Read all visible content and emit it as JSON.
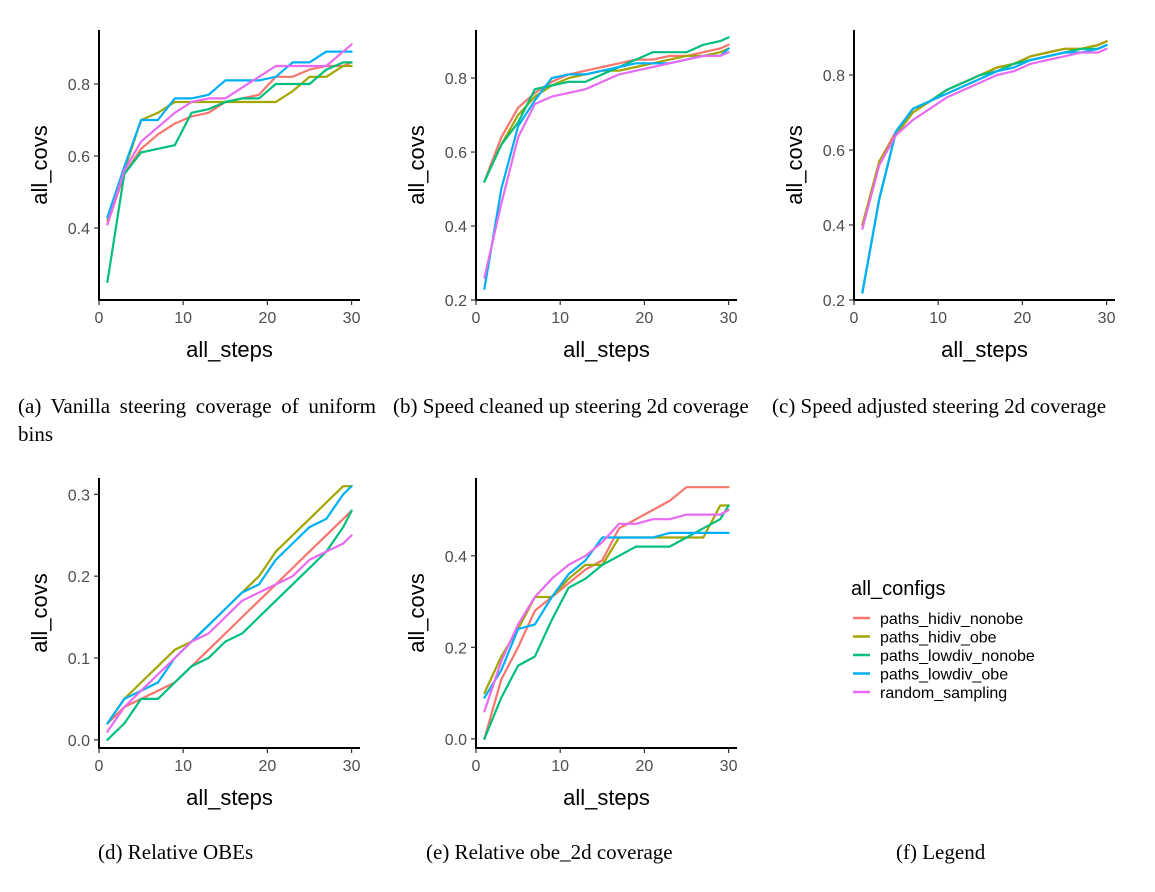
{
  "legend": {
    "title": "all_configs",
    "entries": [
      {
        "name": "paths_hidiv_nonobe",
        "color": "#F8766D"
      },
      {
        "name": "paths_hidiv_obe",
        "color": "#A3A500"
      },
      {
        "name": "paths_lowdiv_nonobe",
        "color": "#00BF7D"
      },
      {
        "name": "paths_lowdiv_obe",
        "color": "#00B0F6"
      },
      {
        "name": "random_sampling",
        "color": "#E76BF3"
      }
    ]
  },
  "captions": [
    "(a) Vanilla steering coverage of uniform bins",
    "(b) Speed cleaned up steering 2d coverage",
    "(c) Speed adjusted steering 2d coverage",
    "(d) Relative OBEs",
    "(e) Relative obe_2d coverage",
    "(f) Legend"
  ],
  "chart_data": [
    {
      "type": "line",
      "title": "",
      "xlabel": "all_steps",
      "ylabel": "all_covs",
      "xlim": [
        0,
        31
      ],
      "ylim": [
        0.2,
        0.95
      ],
      "xticks": [
        0,
        10,
        20,
        30
      ],
      "yticks": [
        0.4,
        0.6,
        0.8
      ],
      "yticklabels": [
        "0.4",
        "0.6",
        "0.8"
      ],
      "series": [
        {
          "x": [
            1,
            3,
            5,
            7,
            9,
            11,
            13,
            15,
            17,
            19,
            21,
            23,
            25,
            27,
            29,
            30
          ],
          "y": [
            0.41,
            0.55,
            0.62,
            0.66,
            0.69,
            0.71,
            0.72,
            0.75,
            0.76,
            0.77,
            0.82,
            0.82,
            0.84,
            0.85,
            0.85,
            0.86
          ]
        },
        {
          "x": [
            1,
            3,
            5,
            7,
            9,
            11,
            13,
            15,
            17,
            19,
            21,
            23,
            25,
            27,
            29,
            30
          ],
          "y": [
            0.42,
            0.56,
            0.7,
            0.72,
            0.75,
            0.75,
            0.75,
            0.75,
            0.75,
            0.75,
            0.75,
            0.78,
            0.82,
            0.82,
            0.85,
            0.85
          ]
        },
        {
          "x": [
            1,
            3,
            5,
            7,
            9,
            11,
            13,
            15,
            17,
            19,
            21,
            23,
            25,
            27,
            29,
            30
          ],
          "y": [
            0.25,
            0.55,
            0.61,
            0.62,
            0.63,
            0.72,
            0.73,
            0.75,
            0.76,
            0.76,
            0.8,
            0.8,
            0.8,
            0.84,
            0.86,
            0.86
          ]
        },
        {
          "x": [
            1,
            3,
            5,
            7,
            9,
            11,
            13,
            15,
            17,
            19,
            21,
            23,
            25,
            27,
            29,
            30
          ],
          "y": [
            0.43,
            0.57,
            0.7,
            0.7,
            0.76,
            0.76,
            0.77,
            0.81,
            0.81,
            0.81,
            0.82,
            0.86,
            0.86,
            0.89,
            0.89,
            0.89
          ]
        },
        {
          "x": [
            1,
            3,
            5,
            7,
            9,
            11,
            13,
            15,
            17,
            19,
            21,
            23,
            25,
            27,
            29,
            30
          ],
          "y": [
            0.41,
            0.56,
            0.64,
            0.68,
            0.72,
            0.75,
            0.76,
            0.76,
            0.79,
            0.82,
            0.85,
            0.85,
            0.85,
            0.85,
            0.89,
            0.91
          ]
        }
      ]
    },
    {
      "type": "line",
      "title": "",
      "xlabel": "all_steps",
      "ylabel": "all_covs",
      "xlim": [
        0,
        31
      ],
      "ylim": [
        0.2,
        0.93
      ],
      "xticks": [
        0,
        10,
        20,
        30
      ],
      "yticks": [
        0.2,
        0.4,
        0.6,
        0.8
      ],
      "yticklabels": [
        "0.2",
        "0.4",
        "0.6",
        "0.8"
      ],
      "series": [
        {
          "x": [
            1,
            3,
            5,
            7,
            9,
            11,
            13,
            15,
            17,
            19,
            21,
            23,
            25,
            27,
            29,
            30
          ],
          "y": [
            0.52,
            0.64,
            0.72,
            0.76,
            0.79,
            0.81,
            0.82,
            0.83,
            0.84,
            0.85,
            0.85,
            0.86,
            0.86,
            0.87,
            0.88,
            0.89
          ]
        },
        {
          "x": [
            1,
            3,
            5,
            7,
            9,
            11,
            13,
            15,
            17,
            19,
            21,
            23,
            25,
            27,
            29,
            30
          ],
          "y": [
            0.52,
            0.62,
            0.7,
            0.75,
            0.78,
            0.8,
            0.81,
            0.82,
            0.82,
            0.83,
            0.84,
            0.85,
            0.86,
            0.86,
            0.87,
            0.88
          ]
        },
        {
          "x": [
            1,
            3,
            5,
            7,
            9,
            11,
            13,
            15,
            17,
            19,
            21,
            23,
            25,
            27,
            29,
            30
          ],
          "y": [
            0.52,
            0.62,
            0.68,
            0.77,
            0.78,
            0.79,
            0.79,
            0.81,
            0.83,
            0.85,
            0.87,
            0.87,
            0.87,
            0.89,
            0.9,
            0.91
          ]
        },
        {
          "x": [
            1,
            3,
            5,
            7,
            9,
            11,
            13,
            15,
            17,
            19,
            21,
            23,
            25,
            27,
            29,
            30
          ],
          "y": [
            0.23,
            0.5,
            0.67,
            0.74,
            0.8,
            0.81,
            0.81,
            0.82,
            0.83,
            0.84,
            0.84,
            0.84,
            0.85,
            0.86,
            0.86,
            0.88
          ]
        },
        {
          "x": [
            1,
            3,
            5,
            7,
            9,
            11,
            13,
            15,
            17,
            19,
            21,
            23,
            25,
            27,
            29,
            30
          ],
          "y": [
            0.26,
            0.46,
            0.64,
            0.73,
            0.75,
            0.76,
            0.77,
            0.79,
            0.81,
            0.82,
            0.83,
            0.84,
            0.85,
            0.86,
            0.86,
            0.87
          ]
        }
      ]
    },
    {
      "type": "line",
      "title": "",
      "xlabel": "all_steps",
      "ylabel": "all_covs",
      "xlim": [
        0,
        31
      ],
      "ylim": [
        0.2,
        0.92
      ],
      "xticks": [
        0,
        10,
        20,
        30
      ],
      "yticks": [
        0.2,
        0.4,
        0.6,
        0.8
      ],
      "yticklabels": [
        "0.2",
        "0.4",
        "0.6",
        "0.8"
      ],
      "series": [
        {
          "x": [
            1,
            3,
            5,
            7,
            9,
            11,
            13,
            15,
            17,
            19,
            21,
            23,
            25,
            27,
            29,
            30
          ],
          "y": [
            0.4,
            0.57,
            0.65,
            0.7,
            0.73,
            0.76,
            0.78,
            0.8,
            0.82,
            0.83,
            0.85,
            0.86,
            0.87,
            0.87,
            0.88,
            0.89
          ]
        },
        {
          "x": [
            1,
            3,
            5,
            7,
            9,
            11,
            13,
            15,
            17,
            19,
            21,
            23,
            25,
            27,
            29,
            30
          ],
          "y": [
            0.4,
            0.57,
            0.64,
            0.7,
            0.73,
            0.76,
            0.78,
            0.8,
            0.82,
            0.83,
            0.85,
            0.86,
            0.87,
            0.87,
            0.88,
            0.89
          ]
        },
        {
          "x": [
            1,
            3,
            5,
            7,
            9,
            11,
            13,
            15,
            17,
            19,
            21,
            23,
            25,
            27,
            29,
            30
          ],
          "y": [
            0.22,
            0.47,
            0.65,
            0.71,
            0.73,
            0.76,
            0.78,
            0.8,
            0.81,
            0.83,
            0.84,
            0.85,
            0.86,
            0.87,
            0.87,
            0.88
          ]
        },
        {
          "x": [
            1,
            3,
            5,
            7,
            9,
            11,
            13,
            15,
            17,
            19,
            21,
            23,
            25,
            27,
            29,
            30
          ],
          "y": [
            0.22,
            0.47,
            0.65,
            0.71,
            0.73,
            0.75,
            0.77,
            0.79,
            0.81,
            0.82,
            0.84,
            0.85,
            0.86,
            0.86,
            0.87,
            0.88
          ]
        },
        {
          "x": [
            1,
            3,
            5,
            7,
            9,
            11,
            13,
            15,
            17,
            19,
            21,
            23,
            25,
            27,
            29,
            30
          ],
          "y": [
            0.39,
            0.56,
            0.64,
            0.68,
            0.71,
            0.74,
            0.76,
            0.78,
            0.8,
            0.81,
            0.83,
            0.84,
            0.85,
            0.86,
            0.86,
            0.87
          ]
        }
      ]
    },
    {
      "type": "line",
      "title": "",
      "xlabel": "all_steps",
      "ylabel": "all_covs",
      "xlim": [
        0,
        31
      ],
      "ylim": [
        -0.01,
        0.32
      ],
      "xticks": [
        0,
        10,
        20,
        30
      ],
      "yticks": [
        0.0,
        0.1,
        0.2,
        0.3
      ],
      "yticklabels": [
        "0.0",
        "0.1",
        "0.2",
        "0.3"
      ],
      "series": [
        {
          "x": [
            1,
            3,
            5,
            7,
            9,
            11,
            13,
            15,
            17,
            19,
            21,
            23,
            25,
            27,
            29,
            30
          ],
          "y": [
            0.02,
            0.04,
            0.05,
            0.06,
            0.07,
            0.09,
            0.11,
            0.13,
            0.15,
            0.17,
            0.19,
            0.21,
            0.23,
            0.25,
            0.27,
            0.28
          ]
        },
        {
          "x": [
            1,
            3,
            5,
            7,
            9,
            11,
            13,
            15,
            17,
            19,
            21,
            23,
            25,
            27,
            29,
            30
          ],
          "y": [
            0.02,
            0.05,
            0.07,
            0.09,
            0.11,
            0.12,
            0.14,
            0.16,
            0.18,
            0.2,
            0.23,
            0.25,
            0.27,
            0.29,
            0.31,
            0.31
          ]
        },
        {
          "x": [
            1,
            3,
            5,
            7,
            9,
            11,
            13,
            15,
            17,
            19,
            21,
            23,
            25,
            27,
            29,
            30
          ],
          "y": [
            0.0,
            0.02,
            0.05,
            0.05,
            0.07,
            0.09,
            0.1,
            0.12,
            0.13,
            0.15,
            0.17,
            0.19,
            0.21,
            0.23,
            0.26,
            0.28
          ]
        },
        {
          "x": [
            1,
            3,
            5,
            7,
            9,
            11,
            13,
            15,
            17,
            19,
            21,
            23,
            25,
            27,
            29,
            30
          ],
          "y": [
            0.02,
            0.05,
            0.06,
            0.07,
            0.1,
            0.12,
            0.14,
            0.16,
            0.18,
            0.19,
            0.22,
            0.24,
            0.26,
            0.27,
            0.3,
            0.31
          ]
        },
        {
          "x": [
            1,
            3,
            5,
            7,
            9,
            11,
            13,
            15,
            17,
            19,
            21,
            23,
            25,
            27,
            29,
            30
          ],
          "y": [
            0.01,
            0.04,
            0.06,
            0.08,
            0.1,
            0.12,
            0.13,
            0.15,
            0.17,
            0.18,
            0.19,
            0.2,
            0.22,
            0.23,
            0.24,
            0.25
          ]
        }
      ]
    },
    {
      "type": "line",
      "title": "",
      "xlabel": "all_steps",
      "ylabel": "all_covs",
      "xlim": [
        0,
        31
      ],
      "ylim": [
        -0.02,
        0.57
      ],
      "xticks": [
        0,
        10,
        20,
        30
      ],
      "yticks": [
        0.0,
        0.2,
        0.4
      ],
      "yticklabels": [
        "0.0",
        "0.2",
        "0.4"
      ],
      "series": [
        {
          "x": [
            1,
            3,
            5,
            7,
            9,
            11,
            13,
            15,
            17,
            19,
            21,
            23,
            25,
            27,
            29,
            30
          ],
          "y": [
            0.0,
            0.13,
            0.2,
            0.28,
            0.31,
            0.34,
            0.37,
            0.39,
            0.46,
            0.48,
            0.5,
            0.52,
            0.55,
            0.55,
            0.55,
            0.55
          ]
        },
        {
          "x": [
            1,
            3,
            5,
            7,
            9,
            11,
            13,
            15,
            17,
            19,
            21,
            23,
            25,
            27,
            29,
            30
          ],
          "y": [
            0.1,
            0.18,
            0.24,
            0.31,
            0.31,
            0.35,
            0.38,
            0.38,
            0.44,
            0.44,
            0.44,
            0.44,
            0.44,
            0.44,
            0.51,
            0.51
          ]
        },
        {
          "x": [
            1,
            3,
            5,
            7,
            9,
            11,
            13,
            15,
            17,
            19,
            21,
            23,
            25,
            27,
            29,
            30
          ],
          "y": [
            0.0,
            0.09,
            0.16,
            0.18,
            0.26,
            0.33,
            0.35,
            0.38,
            0.4,
            0.42,
            0.42,
            0.42,
            0.44,
            0.46,
            0.48,
            0.51
          ]
        },
        {
          "x": [
            1,
            3,
            5,
            7,
            9,
            11,
            13,
            15,
            17,
            19,
            21,
            23,
            25,
            27,
            29,
            30
          ],
          "y": [
            0.09,
            0.15,
            0.24,
            0.25,
            0.31,
            0.36,
            0.39,
            0.44,
            0.44,
            0.44,
            0.44,
            0.45,
            0.45,
            0.45,
            0.45,
            0.45
          ]
        },
        {
          "x": [
            1,
            3,
            5,
            7,
            9,
            11,
            13,
            15,
            17,
            19,
            21,
            23,
            25,
            27,
            29,
            30
          ],
          "y": [
            0.06,
            0.17,
            0.25,
            0.31,
            0.35,
            0.38,
            0.4,
            0.43,
            0.47,
            0.47,
            0.48,
            0.48,
            0.49,
            0.49,
            0.49,
            0.5
          ]
        }
      ]
    }
  ]
}
